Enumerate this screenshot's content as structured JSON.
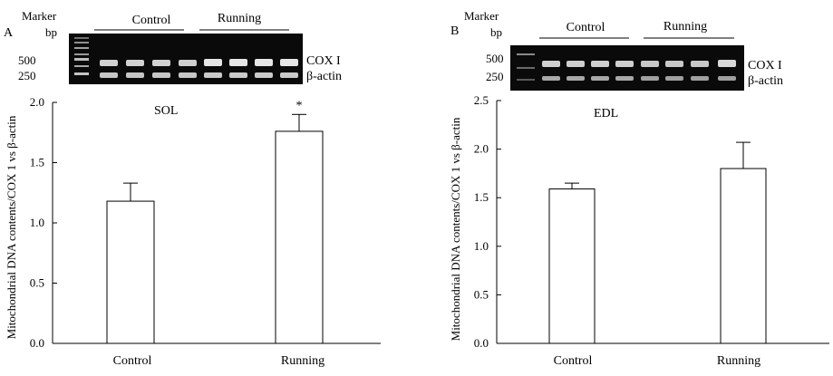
{
  "chart_data": [
    {
      "type": "bar",
      "panel_letter": "A",
      "title": "SOL",
      "categories": [
        "Control",
        "Running"
      ],
      "values": [
        1.18,
        1.76
      ],
      "error": [
        0.15,
        0.14
      ],
      "annotations": [
        "",
        "*"
      ],
      "xlabel": "",
      "ylabel": "Mitochondrial DNA contents/COX 1 vs β-actin",
      "ylim": [
        0,
        2.0
      ],
      "yticks": [
        "0.0",
        "0.5",
        "1.0",
        "1.5",
        "2.0"
      ],
      "grid": false,
      "gel": {
        "marker_label": "Marker",
        "bp_label": "bp",
        "group_labels": [
          "Control",
          "Running"
        ],
        "size_labels": [
          "500",
          "250"
        ],
        "band_labels": [
          "COX I",
          "β-actin"
        ]
      }
    },
    {
      "type": "bar",
      "panel_letter": "B",
      "title": "EDL",
      "categories": [
        "Control",
        "Running"
      ],
      "values": [
        1.59,
        1.8
      ],
      "error": [
        0.06,
        0.27
      ],
      "annotations": [
        "",
        ""
      ],
      "xlabel": "",
      "ylabel": "Mitochondrial DNA contents/COX 1 vs β-actin",
      "ylim": [
        0,
        2.5
      ],
      "yticks": [
        "0.0",
        "0.5",
        "1.0",
        "1.5",
        "2.0",
        "2.5"
      ],
      "grid": false,
      "gel": {
        "marker_label": "Marker",
        "bp_label": "bp",
        "group_labels": [
          "Control",
          "Running"
        ],
        "size_labels": [
          "500",
          "250"
        ],
        "band_labels": [
          "COX I",
          "β-actin"
        ]
      }
    }
  ]
}
